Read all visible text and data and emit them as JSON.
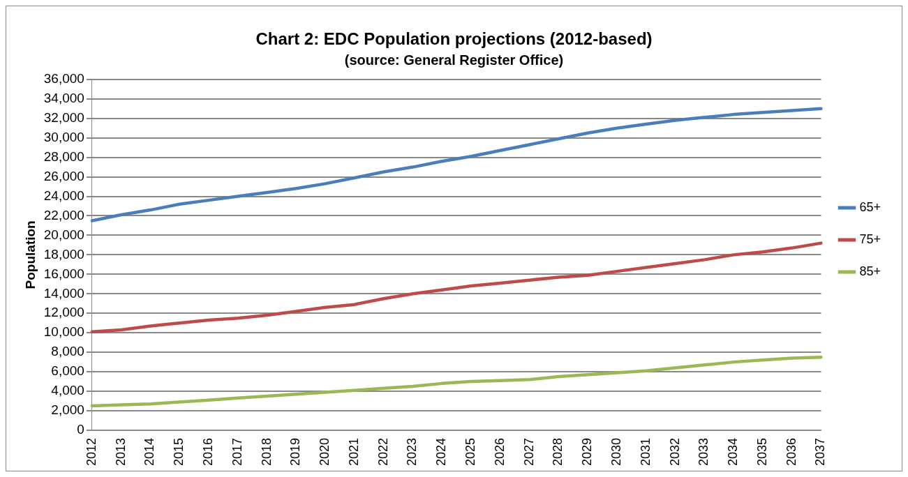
{
  "chart_data": {
    "type": "line",
    "title": "Chart 2: EDC Population projections (2012-based)",
    "subtitle": "(source: General Register Office)",
    "ylabel": "Population",
    "categories": [
      "2012",
      "2013",
      "2014",
      "2015",
      "2016",
      "2017",
      "2018",
      "2019",
      "2020",
      "2021",
      "2022",
      "2023",
      "2024",
      "2025",
      "2026",
      "2027",
      "2028",
      "2029",
      "2030",
      "2031",
      "2032",
      "2033",
      "2034",
      "2035",
      "2036",
      "2037"
    ],
    "series": [
      {
        "name": "65+",
        "color": "#4a7ebb",
        "values": [
          21500,
          22100,
          22600,
          23200,
          23600,
          24000,
          24400,
          24800,
          25300,
          25900,
          26500,
          27000,
          27600,
          28100,
          28700,
          29300,
          29900,
          30500,
          31000,
          31400,
          31800,
          32100,
          32400,
          32600,
          32800,
          33000
        ]
      },
      {
        "name": "75+",
        "color": "#be4b48",
        "values": [
          10100,
          10300,
          10700,
          11000,
          11300,
          11500,
          11800,
          12200,
          12600,
          12900,
          13500,
          14000,
          14400,
          14800,
          15100,
          15400,
          15700,
          15900,
          16300,
          16700,
          17100,
          17500,
          18000,
          18300,
          18700,
          19200
        ]
      },
      {
        "name": "85+",
        "color": "#98b954",
        "values": [
          2500,
          2600,
          2700,
          2900,
          3100,
          3300,
          3500,
          3700,
          3900,
          4100,
          4300,
          4500,
          4800,
          5000,
          5100,
          5200,
          5500,
          5700,
          5900,
          6100,
          6400,
          6700,
          7000,
          7200,
          7400,
          7500
        ]
      }
    ],
    "ylim": [
      0,
      36000
    ],
    "yticks": [
      0,
      {
        "value": 2000,
        "label": "2,000"
      },
      {
        "value": 4000,
        "label": "4,000"
      },
      {
        "value": 6000,
        "label": "6,000"
      },
      {
        "value": 8000,
        "label": "8,000"
      },
      {
        "value": 10000,
        "label": "10,000"
      },
      {
        "value": 12000,
        "label": "12,000"
      },
      {
        "value": 14000,
        "label": "14,000"
      },
      {
        "value": 16000,
        "label": "16,000"
      },
      {
        "value": 18000,
        "label": "18,000"
      },
      {
        "value": 20000,
        "label": "20,000"
      },
      {
        "value": 22000,
        "label": "22,000"
      },
      {
        "value": 24000,
        "label": "24,000"
      },
      {
        "value": 26000,
        "label": "26,000"
      },
      {
        "value": 28000,
        "label": "28,000"
      },
      {
        "value": 30000,
        "label": "30,000"
      },
      {
        "value": 32000,
        "label": "32,000"
      },
      {
        "value": 34000,
        "label": "34,000"
      },
      {
        "value": 36000,
        "label": "36,000"
      }
    ],
    "grid": "y",
    "legend": "right",
    "marker": "none",
    "line_style": "solid"
  }
}
